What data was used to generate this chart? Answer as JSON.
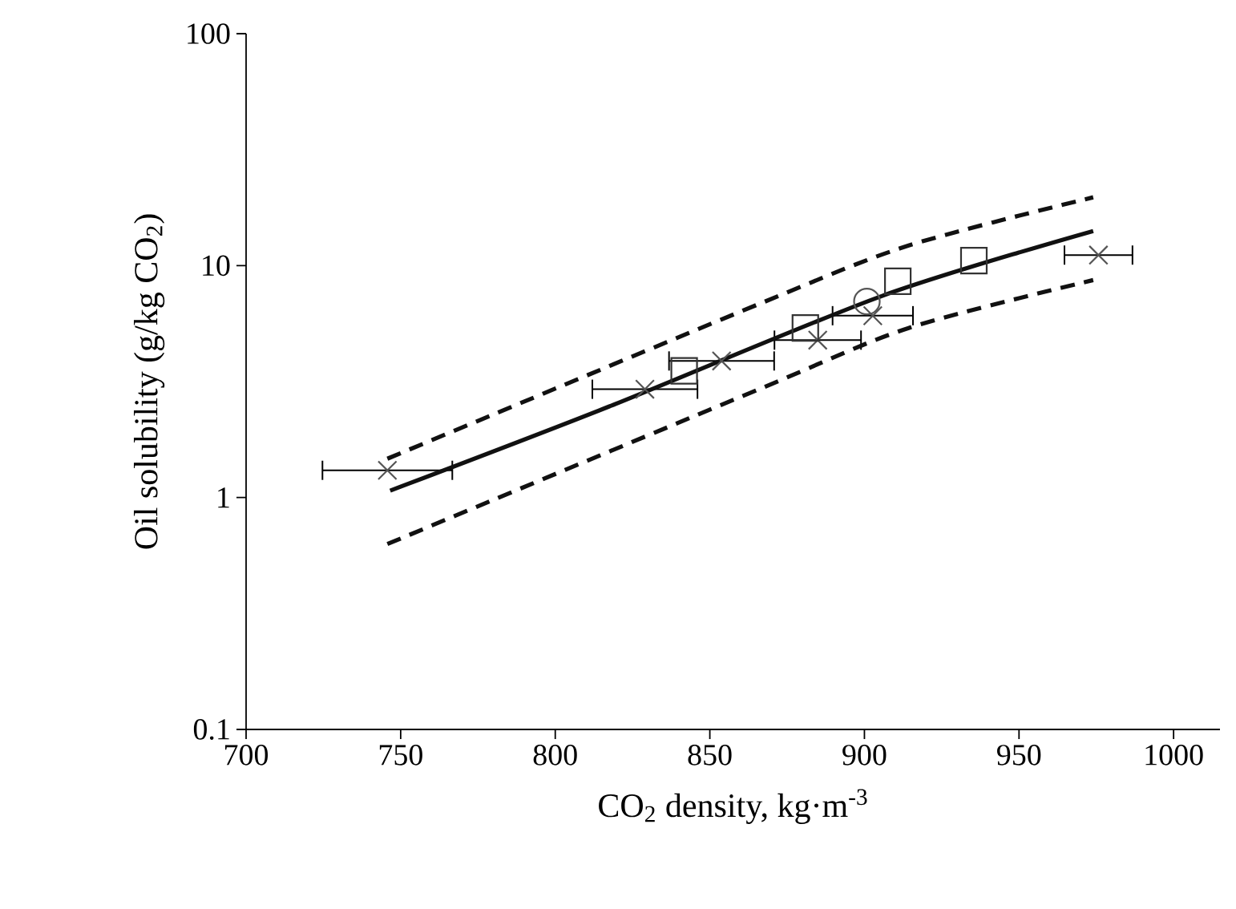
{
  "chart_data": {
    "type": "scatter",
    "xlabel": "CO$_{2}$ density, kg·m$^{-3}$",
    "ylabel": "Oil solubility (g/kg CO$_{2}$)",
    "log": "y",
    "xlim": [
      700,
      1015
    ],
    "xticks": [
      700,
      750,
      800,
      850,
      900,
      950,
      1000
    ],
    "ylim": [
      0.1,
      100
    ],
    "yticks": [
      0.1,
      1,
      10,
      100
    ],
    "series": [
      {
        "type": "scatter",
        "marker": "cross",
        "color": "#555555",
        "x": [
          745.7,
          829,
          853.8,
          884.9,
          902.7,
          975.7
        ],
        "values": [
          1.31,
          2.93,
          3.88,
          4.77,
          6.08,
          11.1
        ],
        "xerrors": [
          21,
          17,
          17,
          14,
          13,
          11
        ]
      },
      {
        "type": "scatter",
        "marker": "square",
        "color": "#333333",
        "x": [
          841.7,
          880.9,
          910.8,
          935.4
        ],
        "values": [
          3.52,
          5.38,
          8.56,
          10.5
        ]
      },
      {
        "type": "scatter",
        "marker": "circle",
        "color": "#555555",
        "x": [
          900.8
        ],
        "values": [
          7.0
        ]
      },
      {
        "type": "line",
        "line_style": "solid",
        "color": "#111111",
        "x": [
          746.6,
          817.5,
          905.6,
          974
        ],
        "values": [
          1.07,
          2.47,
          7.39,
          14.1
        ]
      },
      {
        "type": "line",
        "line_style": "dashed",
        "color": "#111111",
        "x": [
          745.7,
          865.9,
          914.3,
          974
        ],
        "values": [
          1.47,
          6.83,
          12.2,
          19.7
        ]
      },
      {
        "type": "line",
        "line_style": "dashed",
        "color": "#111111",
        "x": [
          745.7,
          865.9,
          914.3,
          974
        ],
        "values": [
          0.63,
          2.93,
          5.38,
          8.66
        ]
      }
    ]
  }
}
